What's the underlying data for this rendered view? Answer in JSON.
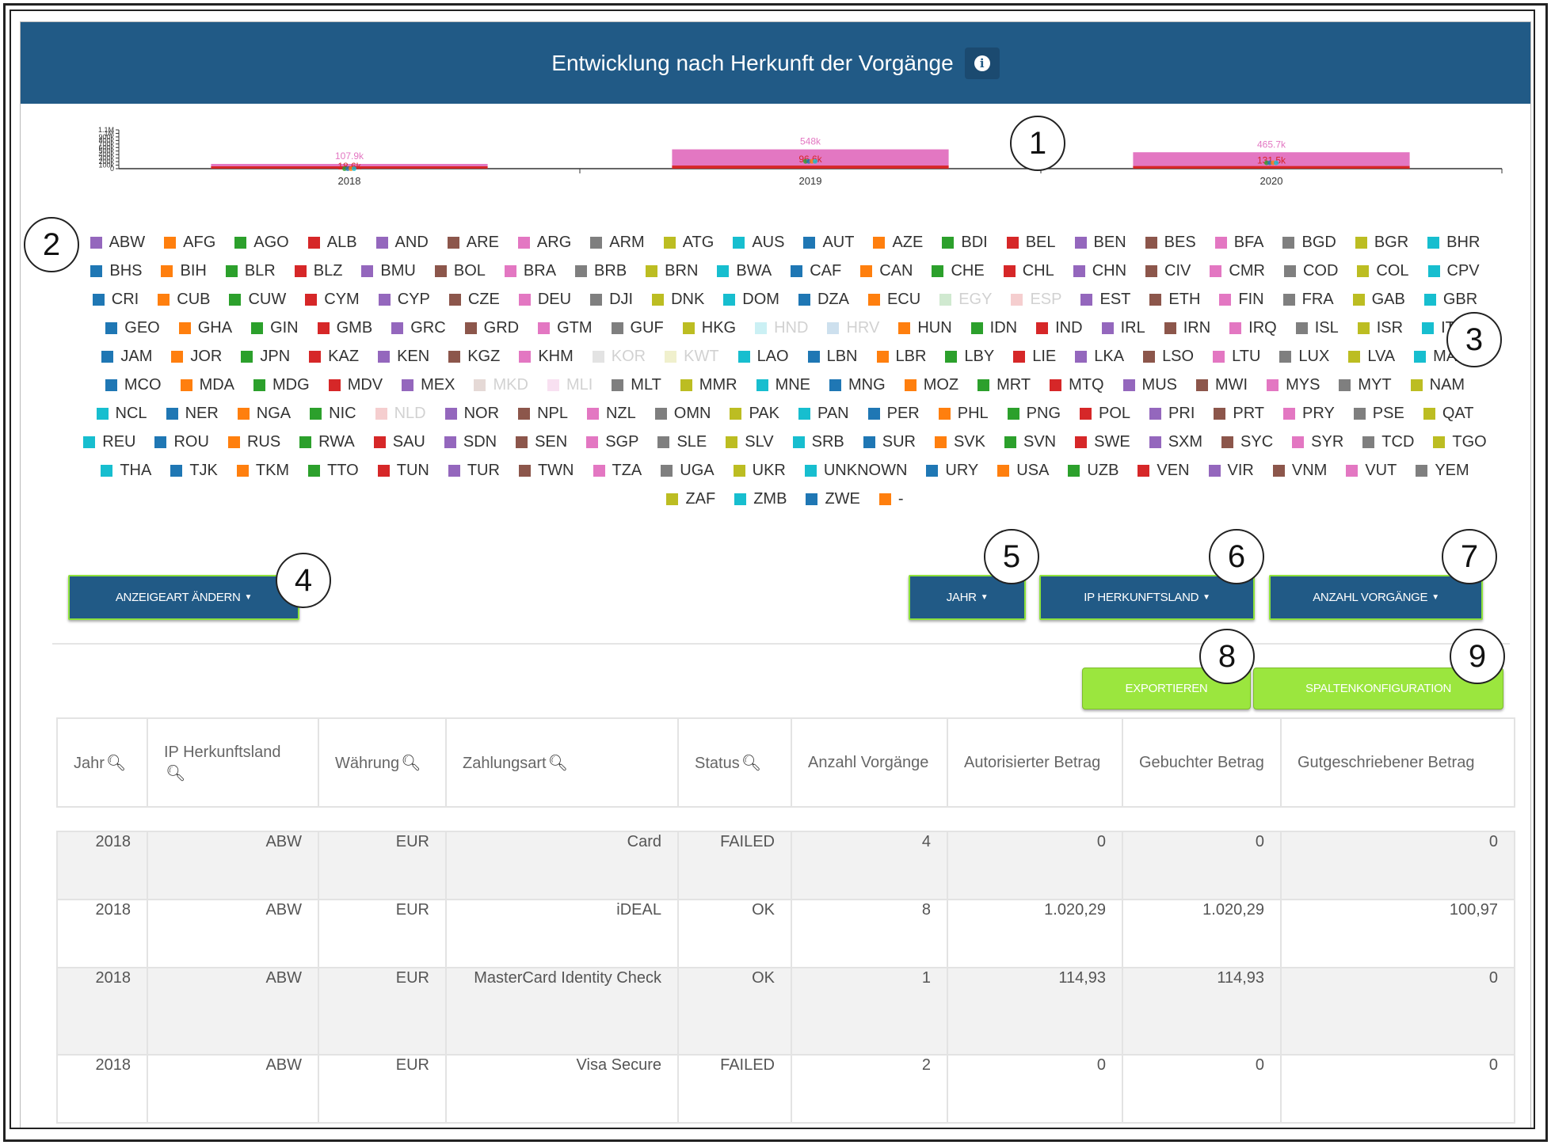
{
  "panel": {
    "title": "Entwicklung nach Herkunft der Vorgänge",
    "info_icon": "info-icon"
  },
  "chart_data": {
    "type": "bar",
    "categories": [
      "2018",
      "2019",
      "2020"
    ],
    "y_tick_labels": [
      "1.1M",
      "1M",
      "900k",
      "800k",
      "700k",
      "600k",
      "500k",
      "400k",
      "300k",
      "200k",
      "100k",
      "0"
    ],
    "ylim": [
      0,
      1100000
    ],
    "series_values": {
      "total_bar": [
        107900,
        548000,
        465700
      ]
    },
    "data_labels": [
      {
        "top": "107.9k",
        "mid": "18.6k"
      },
      {
        "top": "548k",
        "mid": "96.6k"
      },
      {
        "top": "465.7k",
        "mid": "131.5k"
      }
    ]
  },
  "legend": {
    "items": [
      {
        "label": "ABW",
        "color": "#9467bd",
        "dim": false
      },
      {
        "label": "AFG",
        "color": "#ff7f0e",
        "dim": false
      },
      {
        "label": "AGO",
        "color": "#2ca02c",
        "dim": false
      },
      {
        "label": "ALB",
        "color": "#d62728",
        "dim": false
      },
      {
        "label": "AND",
        "color": "#9467bd",
        "dim": false
      },
      {
        "label": "ARE",
        "color": "#8c564b",
        "dim": false
      },
      {
        "label": "ARG",
        "color": "#e377c2",
        "dim": false
      },
      {
        "label": "ARM",
        "color": "#7f7f7f",
        "dim": false
      },
      {
        "label": "ATG",
        "color": "#bcbd22",
        "dim": false
      },
      {
        "label": "AUS",
        "color": "#17becf",
        "dim": false
      },
      {
        "label": "AUT",
        "color": "#1f77b4",
        "dim": false
      },
      {
        "label": "AZE",
        "color": "#ff7f0e",
        "dim": false
      },
      {
        "label": "BDI",
        "color": "#2ca02c",
        "dim": false
      },
      {
        "label": "BEL",
        "color": "#d62728",
        "dim": false
      },
      {
        "label": "BEN",
        "color": "#9467bd",
        "dim": false
      },
      {
        "label": "BES",
        "color": "#8c564b",
        "dim": false
      },
      {
        "label": "BFA",
        "color": "#e377c2",
        "dim": false
      },
      {
        "label": "BGD",
        "color": "#7f7f7f",
        "dim": false
      },
      {
        "label": "BGR",
        "color": "#bcbd22",
        "dim": false
      },
      {
        "label": "BHR",
        "color": "#17becf",
        "dim": false
      },
      {
        "label": "BHS",
        "color": "#1f77b4",
        "dim": false
      },
      {
        "label": "BIH",
        "color": "#ff7f0e",
        "dim": false
      },
      {
        "label": "BLR",
        "color": "#2ca02c",
        "dim": false
      },
      {
        "label": "BLZ",
        "color": "#d62728",
        "dim": false
      },
      {
        "label": "BMU",
        "color": "#9467bd",
        "dim": false
      },
      {
        "label": "BOL",
        "color": "#8c564b",
        "dim": false
      },
      {
        "label": "BRA",
        "color": "#e377c2",
        "dim": false
      },
      {
        "label": "BRB",
        "color": "#7f7f7f",
        "dim": false
      },
      {
        "label": "BRN",
        "color": "#bcbd22",
        "dim": false
      },
      {
        "label": "BWA",
        "color": "#17becf",
        "dim": false
      },
      {
        "label": "CAF",
        "color": "#1f77b4",
        "dim": false
      },
      {
        "label": "CAN",
        "color": "#ff7f0e",
        "dim": false
      },
      {
        "label": "CHE",
        "color": "#2ca02c",
        "dim": false
      },
      {
        "label": "CHL",
        "color": "#d62728",
        "dim": false
      },
      {
        "label": "CHN",
        "color": "#9467bd",
        "dim": false
      },
      {
        "label": "CIV",
        "color": "#8c564b",
        "dim": false
      },
      {
        "label": "CMR",
        "color": "#e377c2",
        "dim": false
      },
      {
        "label": "COD",
        "color": "#7f7f7f",
        "dim": false
      },
      {
        "label": "COL",
        "color": "#bcbd22",
        "dim": false
      },
      {
        "label": "CPV",
        "color": "#17becf",
        "dim": false
      },
      {
        "label": "CRI",
        "color": "#1f77b4",
        "dim": false
      },
      {
        "label": "CUB",
        "color": "#ff7f0e",
        "dim": false
      },
      {
        "label": "CUW",
        "color": "#2ca02c",
        "dim": false
      },
      {
        "label": "CYM",
        "color": "#d62728",
        "dim": false
      },
      {
        "label": "CYP",
        "color": "#9467bd",
        "dim": false
      },
      {
        "label": "CZE",
        "color": "#8c564b",
        "dim": false
      },
      {
        "label": "DEU",
        "color": "#e377c2",
        "dim": false
      },
      {
        "label": "DJI",
        "color": "#7f7f7f",
        "dim": false
      },
      {
        "label": "DNK",
        "color": "#bcbd22",
        "dim": false
      },
      {
        "label": "DOM",
        "color": "#17becf",
        "dim": false
      },
      {
        "label": "DZA",
        "color": "#1f77b4",
        "dim": false
      },
      {
        "label": "ECU",
        "color": "#ff7f0e",
        "dim": false
      },
      {
        "label": "EGY",
        "color": "#2ca02c",
        "dim": true
      },
      {
        "label": "ESP",
        "color": "#d62728",
        "dim": true
      },
      {
        "label": "EST",
        "color": "#9467bd",
        "dim": false
      },
      {
        "label": "ETH",
        "color": "#8c564b",
        "dim": false
      },
      {
        "label": "FIN",
        "color": "#e377c2",
        "dim": false
      },
      {
        "label": "FRA",
        "color": "#7f7f7f",
        "dim": false
      },
      {
        "label": "GAB",
        "color": "#bcbd22",
        "dim": false
      },
      {
        "label": "GBR",
        "color": "#17becf",
        "dim": false
      },
      {
        "label": "GEO",
        "color": "#1f77b4",
        "dim": false
      },
      {
        "label": "GHA",
        "color": "#ff7f0e",
        "dim": false
      },
      {
        "label": "GIN",
        "color": "#2ca02c",
        "dim": false
      },
      {
        "label": "GMB",
        "color": "#d62728",
        "dim": false
      },
      {
        "label": "GRC",
        "color": "#9467bd",
        "dim": false
      },
      {
        "label": "GRD",
        "color": "#8c564b",
        "dim": false
      },
      {
        "label": "GTM",
        "color": "#e377c2",
        "dim": false
      },
      {
        "label": "GUF",
        "color": "#7f7f7f",
        "dim": false
      },
      {
        "label": "HKG",
        "color": "#bcbd22",
        "dim": false
      },
      {
        "label": "HND",
        "color": "#17becf",
        "dim": true
      },
      {
        "label": "HRV",
        "color": "#1f77b4",
        "dim": true
      },
      {
        "label": "HUN",
        "color": "#ff7f0e",
        "dim": false
      },
      {
        "label": "IDN",
        "color": "#2ca02c",
        "dim": false
      },
      {
        "label": "IND",
        "color": "#d62728",
        "dim": false
      },
      {
        "label": "IRL",
        "color": "#9467bd",
        "dim": false
      },
      {
        "label": "IRN",
        "color": "#8c564b",
        "dim": false
      },
      {
        "label": "IRQ",
        "color": "#e377c2",
        "dim": false
      },
      {
        "label": "ISL",
        "color": "#7f7f7f",
        "dim": false
      },
      {
        "label": "ISR",
        "color": "#bcbd22",
        "dim": false
      },
      {
        "label": "ITA",
        "color": "#17becf",
        "dim": false
      },
      {
        "label": "JAM",
        "color": "#1f77b4",
        "dim": false
      },
      {
        "label": "JOR",
        "color": "#ff7f0e",
        "dim": false
      },
      {
        "label": "JPN",
        "color": "#2ca02c",
        "dim": false
      },
      {
        "label": "KAZ",
        "color": "#d62728",
        "dim": false
      },
      {
        "label": "KEN",
        "color": "#9467bd",
        "dim": false
      },
      {
        "label": "KGZ",
        "color": "#8c564b",
        "dim": false
      },
      {
        "label": "KHM",
        "color": "#e377c2",
        "dim": false
      },
      {
        "label": "KOR",
        "color": "#7f7f7f",
        "dim": true
      },
      {
        "label": "KWT",
        "color": "#bcbd22",
        "dim": true
      },
      {
        "label": "LAO",
        "color": "#17becf",
        "dim": false
      },
      {
        "label": "LBN",
        "color": "#1f77b4",
        "dim": false
      },
      {
        "label": "LBR",
        "color": "#ff7f0e",
        "dim": false
      },
      {
        "label": "LBY",
        "color": "#2ca02c",
        "dim": false
      },
      {
        "label": "LIE",
        "color": "#d62728",
        "dim": false
      },
      {
        "label": "LKA",
        "color": "#9467bd",
        "dim": false
      },
      {
        "label": "LSO",
        "color": "#8c564b",
        "dim": false
      },
      {
        "label": "LTU",
        "color": "#e377c2",
        "dim": false
      },
      {
        "label": "LUX",
        "color": "#7f7f7f",
        "dim": false
      },
      {
        "label": "LVA",
        "color": "#bcbd22",
        "dim": false
      },
      {
        "label": "MAR",
        "color": "#17becf",
        "dim": false
      },
      {
        "label": "MCO",
        "color": "#1f77b4",
        "dim": false
      },
      {
        "label": "MDA",
        "color": "#ff7f0e",
        "dim": false
      },
      {
        "label": "MDG",
        "color": "#2ca02c",
        "dim": false
      },
      {
        "label": "MDV",
        "color": "#d62728",
        "dim": false
      },
      {
        "label": "MEX",
        "color": "#9467bd",
        "dim": false
      },
      {
        "label": "MKD",
        "color": "#8c564b",
        "dim": true
      },
      {
        "label": "MLI",
        "color": "#e377c2",
        "dim": true
      },
      {
        "label": "MLT",
        "color": "#7f7f7f",
        "dim": false
      },
      {
        "label": "MMR",
        "color": "#bcbd22",
        "dim": false
      },
      {
        "label": "MNE",
        "color": "#17becf",
        "dim": false
      },
      {
        "label": "MNG",
        "color": "#1f77b4",
        "dim": false
      },
      {
        "label": "MOZ",
        "color": "#ff7f0e",
        "dim": false
      },
      {
        "label": "MRT",
        "color": "#2ca02c",
        "dim": false
      },
      {
        "label": "MTQ",
        "color": "#d62728",
        "dim": false
      },
      {
        "label": "MUS",
        "color": "#9467bd",
        "dim": false
      },
      {
        "label": "MWI",
        "color": "#8c564b",
        "dim": false
      },
      {
        "label": "MYS",
        "color": "#e377c2",
        "dim": false
      },
      {
        "label": "MYT",
        "color": "#7f7f7f",
        "dim": false
      },
      {
        "label": "NAM",
        "color": "#bcbd22",
        "dim": false
      },
      {
        "label": "NCL",
        "color": "#17becf",
        "dim": false
      },
      {
        "label": "NER",
        "color": "#1f77b4",
        "dim": false
      },
      {
        "label": "NGA",
        "color": "#ff7f0e",
        "dim": false
      },
      {
        "label": "NIC",
        "color": "#2ca02c",
        "dim": false
      },
      {
        "label": "NLD",
        "color": "#d62728",
        "dim": true
      },
      {
        "label": "NOR",
        "color": "#9467bd",
        "dim": false
      },
      {
        "label": "NPL",
        "color": "#8c564b",
        "dim": false
      },
      {
        "label": "NZL",
        "color": "#e377c2",
        "dim": false
      },
      {
        "label": "OMN",
        "color": "#7f7f7f",
        "dim": false
      },
      {
        "label": "PAK",
        "color": "#bcbd22",
        "dim": false
      },
      {
        "label": "PAN",
        "color": "#17becf",
        "dim": false
      },
      {
        "label": "PER",
        "color": "#1f77b4",
        "dim": false
      },
      {
        "label": "PHL",
        "color": "#ff7f0e",
        "dim": false
      },
      {
        "label": "PNG",
        "color": "#2ca02c",
        "dim": false
      },
      {
        "label": "POL",
        "color": "#d62728",
        "dim": false
      },
      {
        "label": "PRI",
        "color": "#9467bd",
        "dim": false
      },
      {
        "label": "PRT",
        "color": "#8c564b",
        "dim": false
      },
      {
        "label": "PRY",
        "color": "#e377c2",
        "dim": false
      },
      {
        "label": "PSE",
        "color": "#7f7f7f",
        "dim": false
      },
      {
        "label": "QAT",
        "color": "#bcbd22",
        "dim": false
      },
      {
        "label": "REU",
        "color": "#17becf",
        "dim": false
      },
      {
        "label": "ROU",
        "color": "#1f77b4",
        "dim": false
      },
      {
        "label": "RUS",
        "color": "#ff7f0e",
        "dim": false
      },
      {
        "label": "RWA",
        "color": "#2ca02c",
        "dim": false
      },
      {
        "label": "SAU",
        "color": "#d62728",
        "dim": false
      },
      {
        "label": "SDN",
        "color": "#9467bd",
        "dim": false
      },
      {
        "label": "SEN",
        "color": "#8c564b",
        "dim": false
      },
      {
        "label": "SGP",
        "color": "#e377c2",
        "dim": false
      },
      {
        "label": "SLE",
        "color": "#7f7f7f",
        "dim": false
      },
      {
        "label": "SLV",
        "color": "#bcbd22",
        "dim": false
      },
      {
        "label": "SRB",
        "color": "#17becf",
        "dim": false
      },
      {
        "label": "SUR",
        "color": "#1f77b4",
        "dim": false
      },
      {
        "label": "SVK",
        "color": "#ff7f0e",
        "dim": false
      },
      {
        "label": "SVN",
        "color": "#2ca02c",
        "dim": false
      },
      {
        "label": "SWE",
        "color": "#d62728",
        "dim": false
      },
      {
        "label": "SXM",
        "color": "#9467bd",
        "dim": false
      },
      {
        "label": "SYC",
        "color": "#8c564b",
        "dim": false
      },
      {
        "label": "SYR",
        "color": "#e377c2",
        "dim": false
      },
      {
        "label": "TCD",
        "color": "#7f7f7f",
        "dim": false
      },
      {
        "label": "TGO",
        "color": "#bcbd22",
        "dim": false
      },
      {
        "label": "THA",
        "color": "#17becf",
        "dim": false
      },
      {
        "label": "TJK",
        "color": "#1f77b4",
        "dim": false
      },
      {
        "label": "TKM",
        "color": "#ff7f0e",
        "dim": false
      },
      {
        "label": "TTO",
        "color": "#2ca02c",
        "dim": false
      },
      {
        "label": "TUN",
        "color": "#d62728",
        "dim": false
      },
      {
        "label": "TUR",
        "color": "#9467bd",
        "dim": false
      },
      {
        "label": "TWN",
        "color": "#8c564b",
        "dim": false
      },
      {
        "label": "TZA",
        "color": "#e377c2",
        "dim": false
      },
      {
        "label": "UGA",
        "color": "#7f7f7f",
        "dim": false
      },
      {
        "label": "UKR",
        "color": "#bcbd22",
        "dim": false
      },
      {
        "label": "UNKNOWN",
        "color": "#17becf",
        "dim": false
      },
      {
        "label": "URY",
        "color": "#1f77b4",
        "dim": false
      },
      {
        "label": "USA",
        "color": "#ff7f0e",
        "dim": false
      },
      {
        "label": "UZB",
        "color": "#2ca02c",
        "dim": false
      },
      {
        "label": "VEN",
        "color": "#d62728",
        "dim": false
      },
      {
        "label": "VIR",
        "color": "#9467bd",
        "dim": false
      },
      {
        "label": "VNM",
        "color": "#8c564b",
        "dim": false
      },
      {
        "label": "VUT",
        "color": "#e377c2",
        "dim": false
      },
      {
        "label": "YEM",
        "color": "#7f7f7f",
        "dim": false
      },
      {
        "label": "ZAF",
        "color": "#bcbd22",
        "dim": false
      },
      {
        "label": "ZMB",
        "color": "#17becf",
        "dim": false
      },
      {
        "label": "ZWE",
        "color": "#1f77b4",
        "dim": false
      },
      {
        "label": "-",
        "color": "#ff7f0e",
        "dim": false
      }
    ]
  },
  "toolbar": {
    "display_type_label": "ANZEIGEART ÄNDERN",
    "year_label": "JAHR",
    "country_label": "IP HERKUNFTSLAND",
    "count_label": "ANZAHL VORGÄNGE",
    "export_label": "EXPORTIEREN",
    "columns_label": "SPALTENKONFIGURATION"
  },
  "callouts": [
    "1",
    "2",
    "3",
    "4",
    "5",
    "6",
    "7",
    "8",
    "9"
  ],
  "table": {
    "columns": [
      {
        "label": "Jahr",
        "searchable": true
      },
      {
        "label": "IP Herkunftsland",
        "searchable": true
      },
      {
        "label": "Währung",
        "searchable": true
      },
      {
        "label": "Zahlungsart",
        "searchable": true
      },
      {
        "label": "Status",
        "searchable": true
      },
      {
        "label": "Anzahl Vorgänge",
        "searchable": false
      },
      {
        "label": "Autorisierter Betrag",
        "searchable": false
      },
      {
        "label": "Gebuchter Betrag",
        "searchable": false
      },
      {
        "label": "Gutgeschriebener Betrag",
        "searchable": false
      }
    ],
    "rows": [
      [
        "2018",
        "ABW",
        "EUR",
        "Card",
        "FAILED",
        "4",
        "0",
        "0",
        "0"
      ],
      [
        "2018",
        "ABW",
        "EUR",
        "iDEAL",
        "OK",
        "8",
        "1.020,29",
        "1.020,29",
        "100,97"
      ],
      [
        "2018",
        "ABW",
        "EUR",
        "MasterCard Identity Check",
        "OK",
        "1",
        "114,93",
        "114,93",
        "0"
      ],
      [
        "2018",
        "ABW",
        "EUR",
        "Visa Secure",
        "FAILED",
        "2",
        "0",
        "0",
        "0"
      ]
    ]
  }
}
